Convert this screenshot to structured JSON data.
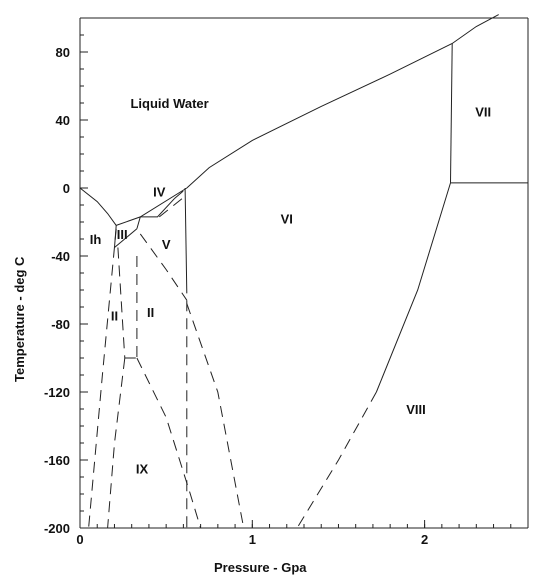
{
  "chart_data": {
    "type": "line",
    "title": "",
    "xlabel": "Pressure - Gpa",
    "ylabel": "Temperature - deg C",
    "xlim": [
      0,
      2.6
    ],
    "ylim": [
      -200,
      100
    ],
    "x_ticks": [
      0,
      1,
      2
    ],
    "y_ticks": [
      80,
      40,
      0,
      -40,
      -80,
      -120,
      -160,
      -200
    ],
    "x_tick_labels": [
      "0",
      "1",
      "2"
    ],
    "y_tick_labels": [
      "80",
      "40",
      "0",
      "-40",
      "-80",
      "-120",
      "-160",
      "-200"
    ],
    "grid": false,
    "regions": [
      {
        "label": "Liquid Water",
        "x": 0.52,
        "y": 50
      },
      {
        "label": "Ih",
        "x": 0.09,
        "y": -30
      },
      {
        "label": "III",
        "x": 0.245,
        "y": -27
      },
      {
        "label": "IV",
        "x": 0.46,
        "y": -2
      },
      {
        "label": "V",
        "x": 0.5,
        "y": -33
      },
      {
        "label": "VI",
        "x": 1.2,
        "y": -18
      },
      {
        "label": "II",
        "x": 0.2,
        "y": -75
      },
      {
        "label": "II",
        "x": 0.41,
        "y": -73
      },
      {
        "label": "IX",
        "x": 0.36,
        "y": -165
      },
      {
        "label": "VIII",
        "x": 1.95,
        "y": -130
      },
      {
        "label": "VII",
        "x": 2.34,
        "y": 45
      }
    ],
    "series": [
      {
        "style": "solid",
        "points": [
          [
            0.0,
            0.0
          ],
          [
            0.1,
            -8
          ],
          [
            0.16,
            -15
          ],
          [
            0.21,
            -22
          ]
        ]
      },
      {
        "style": "solid",
        "points": [
          [
            0.21,
            -22
          ],
          [
            0.35,
            -17
          ],
          [
            0.62,
            0
          ]
        ]
      },
      {
        "style": "solid",
        "points": [
          [
            0.62,
            0
          ],
          [
            0.75,
            12
          ],
          [
            1.0,
            28
          ],
          [
            1.4,
            48
          ],
          [
            1.8,
            67
          ],
          [
            2.16,
            85
          ],
          [
            2.3,
            95
          ],
          [
            2.43,
            102
          ]
        ]
      },
      {
        "style": "solid",
        "points": [
          [
            2.16,
            85
          ],
          [
            2.15,
            3
          ]
        ]
      },
      {
        "style": "solid",
        "points": [
          [
            2.15,
            3
          ],
          [
            2.6,
            3
          ]
        ]
      },
      {
        "style": "solid",
        "points": [
          [
            2.15,
            3
          ],
          [
            1.96,
            -60
          ],
          [
            1.72,
            -120
          ]
        ]
      },
      {
        "style": "solid",
        "points": [
          [
            0.21,
            -22
          ],
          [
            0.2,
            -35
          ]
        ]
      },
      {
        "style": "solid",
        "points": [
          [
            0.2,
            -35
          ],
          [
            0.33,
            -24
          ]
        ]
      },
      {
        "style": "solid",
        "points": [
          [
            0.33,
            -24
          ],
          [
            0.35,
            -17
          ]
        ]
      },
      {
        "style": "solid",
        "points": [
          [
            0.35,
            -17
          ],
          [
            0.45,
            -17
          ],
          [
            0.55,
            -6
          ]
        ]
      },
      {
        "style": "solid",
        "points": [
          [
            0.61,
            0
          ],
          [
            0.62,
            -62
          ]
        ]
      },
      {
        "style": "dashed",
        "points": [
          [
            0.55,
            -6
          ],
          [
            0.62,
            0
          ]
        ]
      },
      {
        "style": "dashed",
        "points": [
          [
            0.46,
            -17
          ],
          [
            0.62,
            -4
          ]
        ]
      },
      {
        "style": "dashed",
        "points": [
          [
            0.35,
            -27
          ],
          [
            0.5,
            -48
          ],
          [
            0.62,
            -66
          ]
        ]
      },
      {
        "style": "dashed",
        "points": [
          [
            0.62,
            -66
          ],
          [
            0.62,
            -200
          ]
        ]
      },
      {
        "style": "dashed",
        "points": [
          [
            0.62,
            -68
          ],
          [
            0.8,
            -120
          ],
          [
            0.95,
            -200
          ]
        ]
      },
      {
        "style": "dashed",
        "points": [
          [
            0.33,
            -40
          ],
          [
            0.33,
            -100
          ]
        ]
      },
      {
        "style": "dashed",
        "points": [
          [
            0.22,
            -35
          ],
          [
            0.26,
            -100
          ]
        ]
      },
      {
        "style": "dashed",
        "points": [
          [
            0.26,
            -100
          ],
          [
            0.33,
            -100
          ]
        ]
      },
      {
        "style": "dashed",
        "points": [
          [
            0.33,
            -100
          ],
          [
            0.5,
            -135
          ],
          [
            0.64,
            -180
          ],
          [
            0.7,
            -200
          ]
        ]
      },
      {
        "style": "dashed",
        "points": [
          [
            0.21,
            -24
          ],
          [
            0.13,
            -110
          ],
          [
            0.05,
            -200
          ]
        ]
      },
      {
        "style": "dashed",
        "points": [
          [
            0.26,
            -100
          ],
          [
            0.2,
            -150
          ],
          [
            0.16,
            -200
          ]
        ]
      },
      {
        "style": "dashed",
        "points": [
          [
            1.72,
            -120
          ],
          [
            1.5,
            -160
          ],
          [
            1.26,
            -200
          ]
        ]
      }
    ]
  }
}
